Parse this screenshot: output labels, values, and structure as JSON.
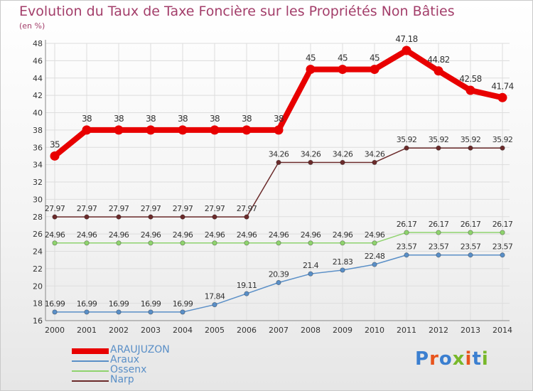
{
  "title": "Evolution du Taux de Taxe Foncière sur les Propriétés Non Bâties",
  "subtitle": "(en %)",
  "logo": {
    "text": "Proxiti",
    "letter_colors": [
      "#3b7fd0",
      "#e8541c",
      "#3b7fd0",
      "#78b82a",
      "#e8541c",
      "#3b7fd0",
      "#78b82a"
    ]
  },
  "chart_data": {
    "type": "line",
    "x": [
      "2000",
      "2001",
      "2002",
      "2003",
      "2004",
      "2005",
      "2006",
      "2007",
      "2008",
      "2009",
      "2010",
      "2011",
      "2012",
      "2013",
      "2014"
    ],
    "ylim": [
      16,
      48
    ],
    "yticks": [
      "16",
      "18",
      "20",
      "22",
      "24",
      "26",
      "28",
      "30",
      "32",
      "34",
      "36",
      "38",
      "40",
      "42",
      "44",
      "46",
      "48"
    ],
    "grid": true,
    "legend_position": "bottom-left",
    "series": [
      {
        "name": "ARAUJUZON",
        "color": "#e80000",
        "values": [
          35,
          38,
          38,
          38,
          38,
          38,
          38,
          38,
          45,
          45,
          45,
          47.18,
          44.82,
          42.58,
          41.74
        ],
        "labels": [
          "35",
          "38",
          "38",
          "38",
          "38",
          "38",
          "38",
          "38",
          "45",
          "45",
          "45",
          "47.18",
          "44.82",
          "42.58",
          "41.74"
        ]
      },
      {
        "name": "Araux",
        "color": "#5a8fc7",
        "values": [
          16.99,
          16.99,
          16.99,
          16.99,
          16.99,
          17.84,
          19.11,
          20.39,
          21.4,
          21.83,
          22.48,
          23.57,
          23.57,
          23.57,
          23.57
        ],
        "labels": [
          "16.99",
          "16.99",
          "16.99",
          "16.99",
          "16.99",
          "17.84",
          "19.11",
          "20.39",
          "21.4",
          "21.83",
          "22.48",
          "23.57",
          "23.57",
          "23.57",
          "23.57"
        ]
      },
      {
        "name": "Ossenx",
        "color": "#8fd36e",
        "values": [
          24.96,
          24.96,
          24.96,
          24.96,
          24.96,
          24.96,
          24.96,
          24.96,
          24.96,
          24.96,
          24.96,
          26.17,
          26.17,
          26.17,
          26.17
        ],
        "labels": [
          "24.96",
          "24.96",
          "24.96",
          "24.96",
          "24.96",
          "24.96",
          "24.96",
          "24.96",
          "24.96",
          "24.96",
          "24.96",
          "26.17",
          "26.17",
          "26.17",
          "26.17"
        ]
      },
      {
        "name": "Narp",
        "color": "#6b2b2b",
        "values": [
          27.97,
          27.97,
          27.97,
          27.97,
          27.97,
          27.97,
          27.97,
          34.26,
          34.26,
          34.26,
          34.26,
          35.92,
          35.92,
          35.92,
          35.92
        ],
        "labels": [
          "27.97",
          "27.97",
          "27.97",
          "27.97",
          "27.97",
          "27.97",
          "27.97",
          "34.26",
          "34.26",
          "34.26",
          "34.26",
          "35.92",
          "35.92",
          "35.92",
          "35.92"
        ]
      }
    ]
  }
}
